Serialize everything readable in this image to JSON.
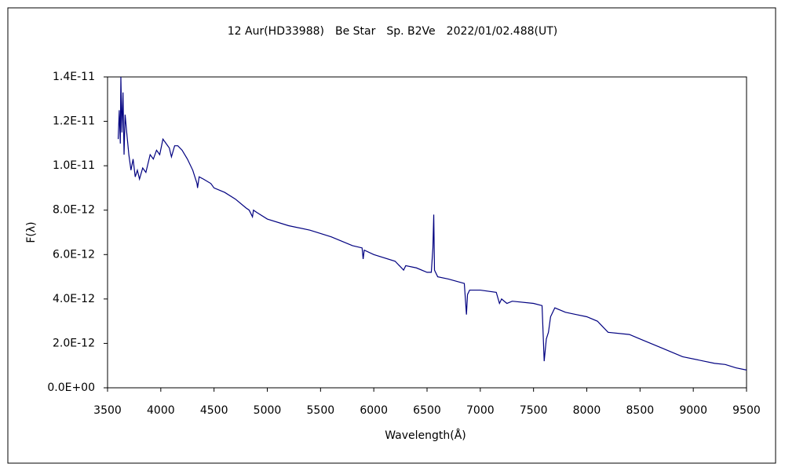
{
  "chart_data": {
    "type": "line",
    "title": "12 Aur(HD33988)　Be Star　Sp. B2Ve　2022/01/02.488(UT)",
    "xlabel": "Wavelength(Å)",
    "ylabel": "F(λ)",
    "color": "#000080",
    "x": [
      3600,
      3610,
      3620,
      3625,
      3635,
      3645,
      3655,
      3665,
      3680,
      3700,
      3720,
      3740,
      3760,
      3780,
      3800,
      3830,
      3860,
      3900,
      3930,
      3960,
      3990,
      4020,
      4050,
      4080,
      4100,
      4130,
      4160,
      4200,
      4250,
      4300,
      4340,
      4345,
      4360,
      4400,
      4470,
      4500,
      4600,
      4700,
      4800,
      4830,
      4861,
      4870,
      4900,
      5000,
      5200,
      5400,
      5600,
      5800,
      5890,
      5900,
      5910,
      6000,
      6200,
      6280,
      6300,
      6400,
      6500,
      6540,
      6555,
      6563,
      6570,
      6600,
      6700,
      6850,
      6870,
      6880,
      6900,
      7000,
      7150,
      7180,
      7200,
      7250,
      7300,
      7500,
      7580,
      7600,
      7620,
      7640,
      7660,
      7700,
      7800,
      7900,
      8000,
      8100,
      8200,
      8400,
      8500,
      8700,
      8900,
      9100,
      9200,
      9300,
      9400,
      9500
    ],
    "values": [
      1.12e-11,
      1.25e-11,
      1.1e-11,
      1.4e-11,
      1.15e-11,
      1.33e-11,
      1.05e-11,
      1.23e-11,
      1.15e-11,
      1.05e-11,
      9.8e-12,
      1.03e-11,
      9.5e-12,
      9.8e-12,
      9.4e-12,
      9.9e-12,
      9.7e-12,
      1.05e-11,
      1.03e-11,
      1.07e-11,
      1.05e-11,
      1.12e-11,
      1.1e-11,
      1.08e-11,
      1.04e-11,
      1.09e-11,
      1.09e-11,
      1.07e-11,
      1.03e-11,
      9.8e-12,
      9.2e-12,
      9e-12,
      9.5e-12,
      9.4e-12,
      9.2e-12,
      9e-12,
      8.8e-12,
      8.5e-12,
      8.1e-12,
      8e-12,
      7.7e-12,
      8e-12,
      7.9e-12,
      7.6e-12,
      7.3e-12,
      7.1e-12,
      6.8e-12,
      6.4e-12,
      6.3e-12,
      5.8e-12,
      6.2e-12,
      6e-12,
      5.7e-12,
      5.3e-12,
      5.5e-12,
      5.4e-12,
      5.2e-12,
      5.2e-12,
      6.3e-12,
      7.8e-12,
      5.3e-12,
      5e-12,
      4.9e-12,
      4.7e-12,
      3.3e-12,
      4.2e-12,
      4.4e-12,
      4.4e-12,
      4.3e-12,
      3.8e-12,
      4e-12,
      3.8e-12,
      3.9e-12,
      3.8e-12,
      3.7e-12,
      1.2e-12,
      2.2e-12,
      2.5e-12,
      3.2e-12,
      3.6e-12,
      3.4e-12,
      3.3e-12,
      3.2e-12,
      3e-12,
      2.5e-12,
      2.4e-12,
      2.2e-12,
      1.8e-12,
      1.4e-12,
      1.2e-12,
      1.1e-12,
      1.05e-12,
      9e-13,
      8e-13
    ],
    "xlim": [
      3500,
      9500
    ],
    "xticks": [
      3500,
      4000,
      4500,
      5000,
      5500,
      6000,
      6500,
      7000,
      7500,
      8000,
      8500,
      9000,
      9500
    ],
    "ylim": [
      0,
      1.4e-11
    ],
    "yticks": [
      {
        "value": 0,
        "label": "0.0E+00"
      },
      {
        "value": 2e-12,
        "label": "2.0E-12"
      },
      {
        "value": 4e-12,
        "label": "4.0E-12"
      },
      {
        "value": 6e-12,
        "label": "6.0E-12"
      },
      {
        "value": 8e-12,
        "label": "8.0E-12"
      },
      {
        "value": 1e-11,
        "label": "1.0E-11"
      },
      {
        "value": 1.2e-11,
        "label": "1.2E-11"
      },
      {
        "value": 1.4e-11,
        "label": "1.4E-11"
      }
    ],
    "grid": false
  }
}
